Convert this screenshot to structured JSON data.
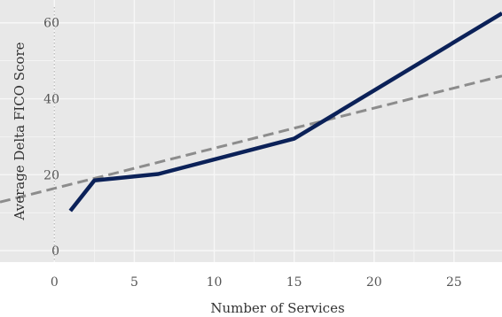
{
  "chart_data": {
    "type": "line",
    "title": "",
    "xlabel": "Number of Services",
    "ylabel": "Average Delta FICO Score",
    "xlim": [
      -3.4,
      28
    ],
    "ylim": [
      -3,
      66
    ],
    "xticks": [
      0,
      5,
      10,
      15,
      20,
      25
    ],
    "yticks": [
      0,
      20,
      40,
      60
    ],
    "xtick_labels": [
      "0",
      "5",
      "10",
      "15",
      "20",
      "25"
    ],
    "ytick_labels": [
      "0",
      "20",
      "40",
      "60"
    ],
    "grid": true,
    "legend": "none",
    "colors": {
      "background": "#e8e8e8",
      "grid": "#f7f7f7",
      "observed": "#0b2158",
      "trend": "#8c8c8c",
      "zero_line": "#bbbbbb"
    },
    "series": [
      {
        "style": "solid",
        "x": [
          1,
          2.5,
          6.5,
          15,
          28
        ],
        "y": [
          10.5,
          18.5,
          20.2,
          29.5,
          62.5
        ]
      },
      {
        "style": "dashed",
        "x": [
          -3.4,
          28
        ],
        "y": [
          12.8,
          46
        ]
      }
    ]
  }
}
